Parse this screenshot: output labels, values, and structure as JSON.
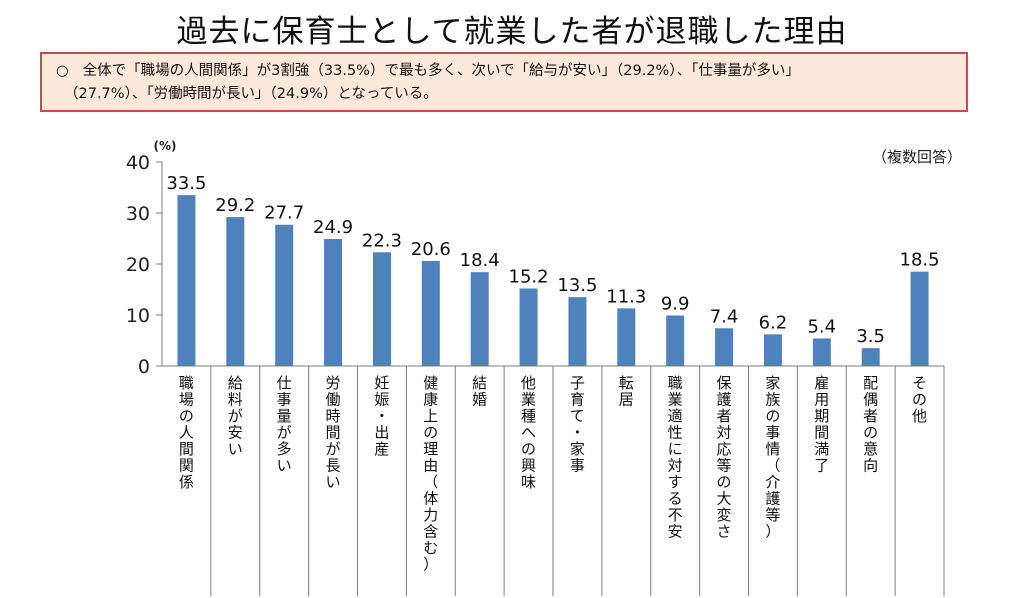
{
  "title": "過去に保育士として就業した者が退職した理由",
  "summary": {
    "bullet": "○",
    "line1": "全体で「職場の人間関係」が3割強（33.5%）で最も多く、次いで「給与が安い」（29.2%）、「仕事量が多い」",
    "line2": "（27.7%）、「労働時間が長い」（24.9%）となっている。"
  },
  "chart_data": {
    "type": "bar",
    "ylabel": "(%)",
    "note": "（複数回答）",
    "ylim": [
      0,
      40
    ],
    "yticks": [
      0,
      10,
      20,
      30,
      40
    ],
    "categories": [
      "職場の人間関係",
      "給料が安い",
      "仕事量が多い",
      "労働時間が長い",
      "妊娠・出産",
      "健康上の理由（体力含む）",
      "結婚",
      "他業種への興味",
      "子育て・家事",
      "転居",
      "職業適性に対する不安",
      "保護者対応等の大変さ",
      "家族の事情（介護等）",
      "雇用期間満了",
      "配偶者の意向",
      "その他"
    ],
    "values": [
      33.5,
      29.2,
      27.7,
      24.9,
      22.3,
      20.6,
      18.4,
      15.2,
      13.5,
      11.3,
      9.9,
      7.4,
      6.2,
      5.4,
      3.5,
      18.5
    ],
    "bar_color": "#4f81bd"
  }
}
